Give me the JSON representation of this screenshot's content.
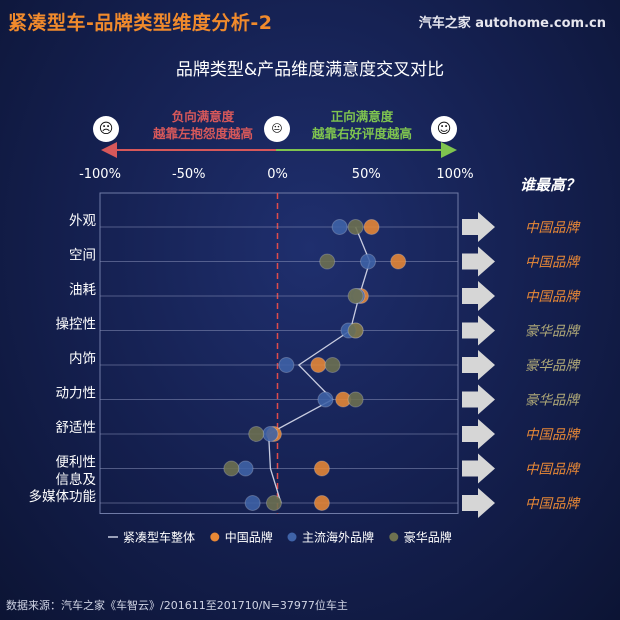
{
  "header": {
    "title": "紧凑型车-品牌类型维度分析-2",
    "logo_text": "汽车之家 autohome.com.cn"
  },
  "chart_data": {
    "type": "scatter",
    "title": "品牌类型&产品维度满意度交叉对比",
    "x_ticks": [
      "-100%",
      "-50%",
      "0%",
      "50%",
      "100%"
    ],
    "xlim": [
      -100,
      100
    ],
    "categories": [
      "外观",
      "空间",
      "油耗",
      "操控性",
      "内饰",
      "动力性",
      "舒适性",
      "便利性",
      "信息及\n多媒体功能"
    ],
    "series": [
      {
        "name": "紧凑型车整体",
        "color": "#c8cce0",
        "values": [
          44,
          52,
          46,
          41,
          12,
          31,
          -5,
          -4,
          2
        ]
      },
      {
        "name": "中国品牌",
        "color": "#e88836",
        "values": [
          53,
          68,
          47,
          44,
          23,
          37,
          -2,
          25,
          25
        ]
      },
      {
        "name": "主流海外品牌",
        "color": "#3f63a8",
        "values": [
          35,
          51,
          45,
          40,
          5,
          27,
          -4,
          -18,
          -14
        ]
      },
      {
        "name": "豪华品牌",
        "color": "#6e7150",
        "values": [
          44,
          28,
          44,
          44,
          31,
          44,
          -12,
          -26,
          -2
        ]
      }
    ],
    "winners": [
      "中国品牌",
      "中国品牌",
      "中国品牌",
      "豪华品牌",
      "豪华品牌",
      "豪华品牌",
      "中国品牌",
      "中国品牌",
      "中国品牌"
    ],
    "winner_colors": {
      "中国品牌": "#e88836",
      "豪华品牌": "#b1aa78"
    }
  },
  "legend_text": {
    "negative_line1": "负向满意度",
    "negative_line2": "越靠左抱怨度越高",
    "positive_line1": "正向满意度",
    "positive_line2": "越靠右好评度越高"
  },
  "faces": {
    "sad": "☹",
    "neutral": "😐",
    "happy": "☺"
  },
  "who_best": "谁最高？",
  "footer": "数据来源：汽车之家《车智云》/201611至201710/N=37977位车主"
}
